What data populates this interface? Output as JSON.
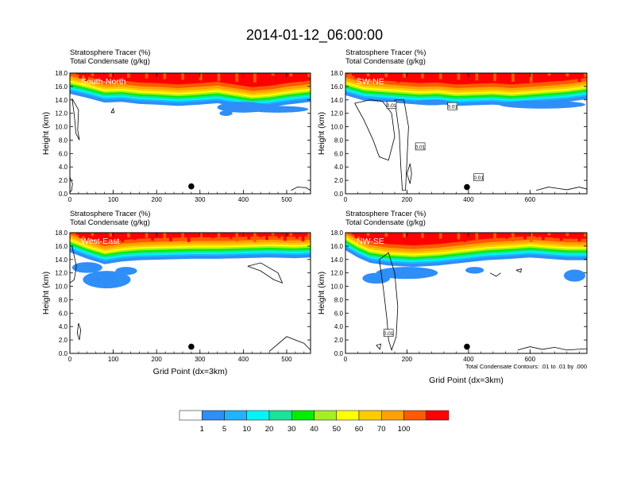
{
  "figure": {
    "title": "2014-01-12_06:00:00",
    "note": "Total Condensate Contours: .01 to .01 by .000"
  },
  "colorbar": {
    "colors": [
      "#ffffff",
      "#2f8ef7",
      "#1fb4ff",
      "#00f5f5",
      "#17e49b",
      "#00ee00",
      "#a5ef20",
      "#ffff00",
      "#ffcc00",
      "#ffa200",
      "#ff5a00",
      "#ff0000"
    ],
    "labels": [
      "1",
      "5",
      "10",
      "20",
      "30",
      "40",
      "50",
      "60",
      "70",
      "100"
    ]
  },
  "chart_data": [
    {
      "type": "heatmap",
      "header": [
        "Stratosphere Tracer   (%)",
        "Total Condensate   (g/kg)"
      ],
      "direction_label": "South-North",
      "ylabel": "Height (km)",
      "xlabel": "",
      "xlim": [
        0,
        555
      ],
      "ylim": [
        0,
        18
      ],
      "xticks": [
        "0",
        "100",
        "200",
        "300",
        "400",
        "500"
      ],
      "yticks": [
        "0.0",
        "2.0",
        "4.0",
        "6.0",
        "8.0",
        "10.0",
        "12.0",
        "14.0",
        "16.0",
        "18.0"
      ],
      "marker": {
        "x": 280,
        "y": 1.1
      },
      "tropopause": [
        [
          0,
          15.8
        ],
        [
          40,
          15.2
        ],
        [
          80,
          14.5
        ],
        [
          120,
          14.6
        ],
        [
          160,
          14.3
        ],
        [
          200,
          14.2
        ],
        [
          250,
          14.0
        ],
        [
          300,
          14.2
        ],
        [
          340,
          14.4
        ],
        [
          380,
          14.0
        ],
        [
          420,
          13.6
        ],
        [
          460,
          13.8
        ],
        [
          500,
          14.2
        ],
        [
          555,
          14.6
        ]
      ],
      "tracer_blobs": [
        {
          "x": 400,
          "y": 12.9,
          "rx": 60,
          "ry": 0.8
        },
        {
          "x": 480,
          "y": 12.6,
          "rx": 70,
          "ry": 0.5
        },
        {
          "x": 360,
          "y": 12.0,
          "rx": 15,
          "ry": 0.4
        }
      ],
      "condensate_contours": [
        [
          [
            5,
            14.2
          ],
          [
            20,
            12.5
          ],
          [
            18,
            9.5
          ],
          [
            22,
            8.0
          ],
          [
            14,
            9.0
          ],
          [
            10,
            11.8
          ],
          [
            5,
            14.2
          ]
        ],
        [
          [
            95,
            12.1
          ],
          [
            100,
            12.7
          ],
          [
            102,
            12.1
          ],
          [
            95,
            12.1
          ]
        ],
        [
          [
            0,
            2.5
          ],
          [
            6,
            1.5
          ],
          [
            4,
            0.5
          ],
          [
            0,
            0.2
          ]
        ],
        [
          [
            510,
            0.5
          ],
          [
            525,
            1.0
          ],
          [
            545,
            0.9
          ],
          [
            555,
            0.5
          ]
        ]
      ],
      "contour_labels": []
    },
    {
      "type": "heatmap",
      "header": [
        "Stratosphere Tracer   (%)",
        "Total Condensate   (g/kg)"
      ],
      "direction_label": "SW-NE",
      "ylabel": "Height (km)",
      "xlabel": "",
      "xlim": [
        0,
        785
      ],
      "ylim": [
        0,
        18
      ],
      "xticks": [
        "0",
        "200",
        "400",
        "600"
      ],
      "yticks": [
        "0.0",
        "2.0",
        "4.0",
        "6.0",
        "8.0",
        "10.0",
        "12.0",
        "14.0",
        "16.0",
        "18.0"
      ],
      "marker": {
        "x": 395,
        "y": 1.0
      },
      "tropopause": [
        [
          0,
          15.6
        ],
        [
          60,
          14.8
        ],
        [
          120,
          14.6
        ],
        [
          180,
          14.4
        ],
        [
          240,
          14.2
        ],
        [
          300,
          14.3
        ],
        [
          360,
          14.0
        ],
        [
          420,
          14.1
        ],
        [
          480,
          14.2
        ],
        [
          540,
          14.0
        ],
        [
          600,
          14.2
        ],
        [
          660,
          14.4
        ],
        [
          720,
          14.6
        ],
        [
          785,
          15.0
        ]
      ],
      "tracer_blobs": [
        {
          "x": 640,
          "y": 13.3,
          "rx": 140,
          "ry": 0.6
        },
        {
          "x": 280,
          "y": 13.6,
          "rx": 60,
          "ry": 0.4
        }
      ],
      "condensate_contours": [
        [
          [
            30,
            13.5
          ],
          [
            60,
            11.0
          ],
          [
            90,
            8.0
          ],
          [
            110,
            5.5
          ],
          [
            140,
            5.0
          ],
          [
            160,
            8.5
          ],
          [
            150,
            12.0
          ],
          [
            120,
            13.8
          ],
          [
            80,
            14.0
          ],
          [
            30,
            13.5
          ]
        ],
        [
          [
            160,
            14.0
          ],
          [
            175,
            9.0
          ],
          [
            180,
            4.0
          ],
          [
            185,
            0.5
          ],
          [
            195,
            0.5
          ],
          [
            200,
            5.0
          ],
          [
            205,
            10.0
          ],
          [
            190,
            14.0
          ],
          [
            160,
            14.0
          ]
        ],
        [
          [
            200,
            3.0
          ],
          [
            210,
            1.5
          ],
          [
            215,
            3.0
          ],
          [
            210,
            4.5
          ],
          [
            200,
            3.0
          ]
        ],
        [
          [
            620,
            0.5
          ],
          [
            660,
            1.0
          ],
          [
            690,
            0.8
          ],
          [
            720,
            0.6
          ],
          [
            760,
            1.0
          ],
          [
            785,
            0.7
          ]
        ]
      ],
      "contour_labels": [
        {
          "text": "0.01",
          "x": 150,
          "y": 13.2
        },
        {
          "text": "0.01",
          "x": 348,
          "y": 13.0
        },
        {
          "text": "0.01",
          "x": 243,
          "y": 7.0
        },
        {
          "text": "0.01",
          "x": 433,
          "y": 2.4
        }
      ]
    },
    {
      "type": "heatmap",
      "header": [
        "Stratosphere Tracer   (%)",
        "Total Condensate   (g/kg)"
      ],
      "direction_label": "West-East",
      "ylabel": "Height (km)",
      "xlabel": "Grid Point (dx=3km)",
      "xlim": [
        0,
        555
      ],
      "ylim": [
        0,
        18
      ],
      "xticks": [
        "0",
        "100",
        "200",
        "300",
        "400",
        "500"
      ],
      "yticks": [
        "0.0",
        "2.0",
        "4.0",
        "6.0",
        "8.0",
        "10.0",
        "12.0",
        "14.0",
        "16.0",
        "18.0"
      ],
      "marker": {
        "x": 280,
        "y": 1.0
      },
      "tropopause": [
        [
          0,
          16.0
        ],
        [
          40,
          15.0
        ],
        [
          80,
          14.2
        ],
        [
          120,
          14.6
        ],
        [
          160,
          14.8
        ],
        [
          220,
          14.9
        ],
        [
          280,
          15.0
        ],
        [
          340,
          15.0
        ],
        [
          400,
          15.1
        ],
        [
          460,
          15.2
        ],
        [
          520,
          15.1
        ],
        [
          555,
          15.2
        ]
      ],
      "tracer_blobs": [
        {
          "x": 85,
          "y": 11.0,
          "rx": 55,
          "ry": 1.3
        },
        {
          "x": 40,
          "y": 12.8,
          "rx": 35,
          "ry": 0.8
        },
        {
          "x": 130,
          "y": 12.3,
          "rx": 25,
          "ry": 0.6
        }
      ],
      "condensate_contours": [
        [
          [
            5,
            16.0
          ],
          [
            15,
            13.0
          ],
          [
            10,
            11.0
          ],
          [
            0,
            10.5
          ]
        ],
        [
          [
            410,
            13.0
          ],
          [
            440,
            12.3
          ],
          [
            470,
            11.0
          ],
          [
            490,
            10.5
          ],
          [
            480,
            12.0
          ],
          [
            440,
            13.5
          ],
          [
            410,
            13.0
          ]
        ],
        [
          [
            20,
            4.5
          ],
          [
            25,
            3.5
          ],
          [
            22,
            2.0
          ],
          [
            17,
            3.0
          ],
          [
            20,
            4.5
          ]
        ],
        [
          [
            460,
            0.3
          ],
          [
            500,
            2.5
          ],
          [
            540,
            1.5
          ],
          [
            555,
            0.5
          ]
        ]
      ],
      "contour_labels": []
    },
    {
      "type": "heatmap",
      "header": [
        "Stratosphere Tracer   (%)",
        "Total Condensate   (g/kg)"
      ],
      "direction_label": "NW-SE",
      "ylabel": "Height (km)",
      "xlabel": "",
      "xlim": [
        0,
        785
      ],
      "ylim": [
        0,
        18
      ],
      "xticks": [
        "0",
        "200",
        "400",
        "600"
      ],
      "yticks": [
        "0.0",
        "2.0",
        "4.0",
        "6.0",
        "8.0",
        "10.0",
        "12.0",
        "14.0",
        "16.0",
        "18.0"
      ],
      "marker": {
        "x": 395,
        "y": 1.0
      },
      "tropopause": [
        [
          0,
          16.3
        ],
        [
          40,
          15.2
        ],
        [
          80,
          14.4
        ],
        [
          140,
          14.0
        ],
        [
          220,
          13.8
        ],
        [
          300,
          14.0
        ],
        [
          380,
          14.4
        ],
        [
          460,
          14.8
        ],
        [
          540,
          15.0
        ],
        [
          600,
          15.2
        ],
        [
          660,
          15.0
        ],
        [
          720,
          14.8
        ],
        [
          785,
          14.8
        ]
      ],
      "tracer_blobs": [
        {
          "x": 200,
          "y": 12.0,
          "rx": 100,
          "ry": 0.9
        },
        {
          "x": 100,
          "y": 11.2,
          "rx": 45,
          "ry": 0.8
        },
        {
          "x": 745,
          "y": 11.6,
          "rx": 35,
          "ry": 0.9
        },
        {
          "x": 420,
          "y": 12.4,
          "rx": 30,
          "ry": 0.5
        }
      ],
      "condensate_contours": [
        [
          [
            110,
            14.0
          ],
          [
            125,
            9.0
          ],
          [
            135,
            5.0
          ],
          [
            140,
            2.0
          ],
          [
            150,
            0.5
          ],
          [
            165,
            2.5
          ],
          [
            170,
            7.0
          ],
          [
            160,
            12.0
          ],
          [
            140,
            15.0
          ],
          [
            110,
            14.0
          ]
        ],
        [
          [
            470,
            12.0
          ],
          [
            490,
            11.5
          ],
          [
            505,
            12.0
          ]
        ],
        [
          [
            555,
            12.4
          ],
          [
            570,
            12.1
          ],
          [
            572,
            12.6
          ],
          [
            555,
            12.4
          ]
        ],
        [
          [
            100,
            1.2
          ],
          [
            115,
            1.4
          ],
          [
            112,
            0.6
          ],
          [
            100,
            1.2
          ]
        ],
        [
          [
            560,
            0.5
          ],
          [
            600,
            1.0
          ],
          [
            640,
            0.6
          ],
          [
            680,
            0.9
          ],
          [
            720,
            0.5
          ],
          [
            785,
            0.7
          ]
        ]
      ],
      "contour_labels": [
        {
          "text": "0.01",
          "x": 140,
          "y": 3.0
        }
      ]
    }
  ]
}
